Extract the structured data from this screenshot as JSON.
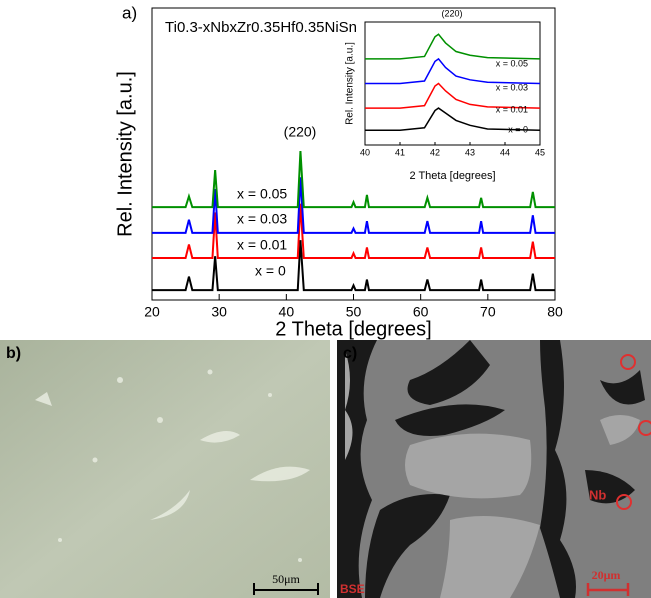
{
  "chart_data": [
    {
      "type": "line",
      "panel_label": "a)",
      "title": "Ti0.3-xNbxZr0.35Hf0.35NiSn",
      "x_label": "2 Theta [degrees]",
      "y_label": "Rel. Intensity [a.u.]",
      "annotation": "(220)",
      "xlim": [
        20,
        80
      ],
      "xticks": [
        20,
        30,
        40,
        50,
        60,
        70,
        80
      ],
      "ylim": [
        0,
        100
      ],
      "x": [
        20,
        25,
        25.5,
        26,
        29,
        29.4,
        29.8,
        41.7,
        42.1,
        42.6,
        49.7,
        50,
        50.3,
        51.7,
        52,
        52.3,
        60.6,
        61,
        61.4,
        68.7,
        69,
        69.3,
        76.3,
        76.7,
        77.1,
        80
      ],
      "series": [
        {
          "name": "x = 0",
          "color": "#000000",
          "values": [
            3.4,
            3.4,
            8,
            3.4,
            3.4,
            15,
            3.4,
            3.4,
            20.5,
            3.4,
            3.4,
            5,
            3.4,
            3.4,
            7,
            3.4,
            3.4,
            7,
            3.4,
            3.4,
            7,
            3.4,
            3.4,
            9,
            3.4,
            3.4
          ]
        },
        {
          "name": "x = 0.01",
          "color": "#ff0000",
          "values": [
            14.4,
            14.4,
            19,
            14.4,
            14.4,
            30,
            14.4,
            14.4,
            33,
            14.4,
            14.4,
            16,
            14.4,
            14.4,
            18,
            14.4,
            14.4,
            18,
            14.4,
            14.4,
            18,
            14.4,
            14.4,
            20,
            14.4,
            14.4
          ]
        },
        {
          "name": "x = 0.03",
          "color": "#0000ff",
          "values": [
            23,
            23,
            27.5,
            23,
            23,
            38,
            23,
            23,
            42,
            23,
            23,
            24.5,
            23,
            23,
            27,
            23,
            23,
            27,
            23,
            23,
            27,
            23,
            23,
            29,
            23,
            23
          ]
        },
        {
          "name": "x = 0.05",
          "color": "#009000",
          "values": [
            31.8,
            31.8,
            35.5,
            31.8,
            31.8,
            44.5,
            31.8,
            31.8,
            51,
            31.8,
            31.8,
            33.5,
            31.8,
            31.8,
            36,
            31.8,
            31.8,
            35,
            31.8,
            31.8,
            35,
            31.8,
            31.8,
            37,
            31.8,
            31.8
          ]
        }
      ]
    },
    {
      "type": "line",
      "x_label": "2 Theta [degrees]",
      "y_label": "Rel. Intensity [a.u.]",
      "annotation": "(220)",
      "xlim": [
        40,
        45
      ],
      "xticks": [
        40,
        41,
        42,
        43,
        44,
        45
      ],
      "ylim": [
        0,
        100
      ],
      "x": [
        40,
        41,
        41.7,
        42,
        42.1,
        42.3,
        42.6,
        43,
        43.5,
        45
      ],
      "series": [
        {
          "name": "x = 0",
          "color": "#000000",
          "values": [
            12,
            12,
            14,
            28,
            30,
            26,
            20,
            16,
            13,
            12
          ]
        },
        {
          "name": "x = 0.01",
          "color": "#ff0000",
          "values": [
            30,
            30,
            32,
            48,
            50,
            44,
            37,
            33,
            31,
            30
          ]
        },
        {
          "name": "x = 0.03",
          "color": "#0000ff",
          "values": [
            50,
            50,
            52,
            68,
            70,
            63,
            56,
            53,
            51,
            50
          ]
        },
        {
          "name": "x = 0.05",
          "color": "#009000",
          "values": [
            70,
            70,
            72,
            88,
            90,
            83,
            76,
            73,
            71,
            70
          ]
        }
      ]
    }
  ],
  "micrographs": [
    {
      "label": "b)",
      "scale_bar": "50μm"
    },
    {
      "label": "c)",
      "scale_bar": "20μm",
      "annotations": [
        "Nb",
        "BSE"
      ]
    }
  ]
}
